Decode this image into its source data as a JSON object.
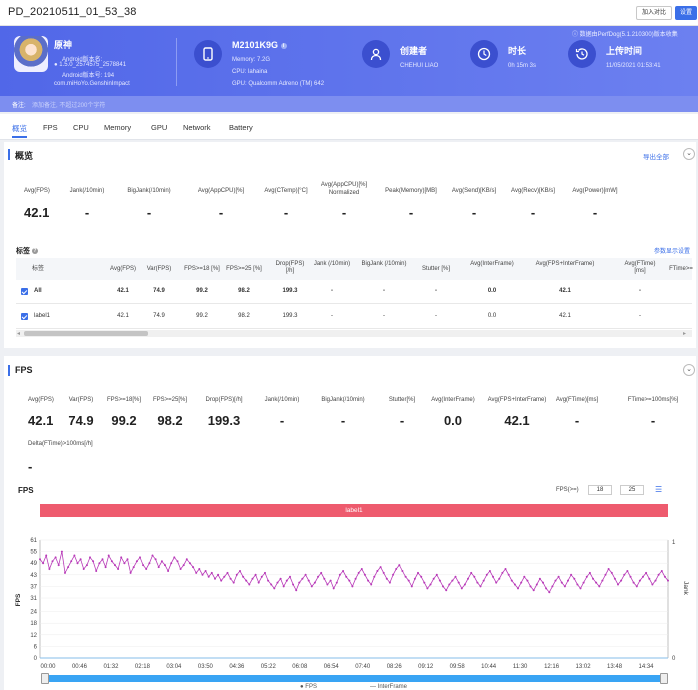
{
  "topbar": {
    "title": "PD_20210511_01_53_38",
    "compare_btn": "加入对比",
    "settings_btn": "设置"
  },
  "header": {
    "app": {
      "name": "原神",
      "android_version_label": "Android版本名:",
      "android_version": "1.5.0_2574575_2578841",
      "android_code": "Android版本号: 194",
      "package": "com.miHoYo.GenshinImpact"
    },
    "device": {
      "model": "M2101K9G",
      "memory": "Memory: 7.2G",
      "cpu": "CPU: lahaina",
      "gpu": "GPU: Qualcomm Adreno (TM) 642"
    },
    "creator": {
      "title": "创建者",
      "value": "CHEHUI LIAO"
    },
    "duration": {
      "title": "时长",
      "value": "0h 15m 3s"
    },
    "upload": {
      "title": "上传时间",
      "value": "11/05/2021 01:53:41"
    },
    "perfdog_version": "数据由PerfDog(5.1.210300)版本收集",
    "note_label": "备注:",
    "note_placeholder": "添加备注, 不超过200个字符"
  },
  "tabs": [
    "概览",
    "FPS",
    "CPU",
    "Memory",
    "GPU",
    "Network",
    "Battery"
  ],
  "overview": {
    "title": "概览",
    "export": "导出全部",
    "stats": [
      {
        "label": "Avg(FPS)",
        "value": "42.1"
      },
      {
        "label": "Jank(/10min)",
        "value": "-"
      },
      {
        "label": "BigJank(/10min)",
        "value": "-"
      },
      {
        "label": "Avg(AppCPU)[%]",
        "value": "-"
      },
      {
        "label": "Avg(CTemp)[°C]",
        "value": "-"
      },
      {
        "label": "Avg(AppCPU)[%] Normalized",
        "value": "-"
      },
      {
        "label": "Peak(Memory)[MB]",
        "value": "-"
      },
      {
        "label": "Avg(Send)[KB/s]",
        "value": "-"
      },
      {
        "label": "Avg(Recv)[KB/s]",
        "value": "-"
      },
      {
        "label": "Avg(Power)[mW]",
        "value": "-"
      }
    ],
    "tags_title": "标签",
    "tags_link": "参数显示设置",
    "table": {
      "headers": [
        "标签",
        "Avg(FPS)",
        "Var(FPS)",
        "FPS>=18 [%]",
        "FPS>=25 [%]",
        "Drop(FPS) [/h]",
        "Jank (/10min)",
        "BigJank (/10min)",
        "Stutter [%]",
        "Avg(InterFrame)",
        "Avg(FPS+InterFrame)",
        "Avg(FTime) [ms]",
        "FTime>="
      ],
      "rows": [
        [
          "All",
          "42.1",
          "74.9",
          "99.2",
          "98.2",
          "199.3",
          "-",
          "-",
          "-",
          "0.0",
          "42.1",
          "-",
          ""
        ],
        [
          "label1",
          "42.1",
          "74.9",
          "99.2",
          "98.2",
          "199.3",
          "-",
          "-",
          "-",
          "0.0",
          "42.1",
          "-",
          ""
        ]
      ]
    }
  },
  "fps_section": {
    "title": "FPS",
    "stats": [
      {
        "label": "Avg(FPS)",
        "value": "42.1"
      },
      {
        "label": "Var(FPS)",
        "value": "74.9"
      },
      {
        "label": "FPS>=18[%]",
        "value": "99.2"
      },
      {
        "label": "FPS>=25[%]",
        "value": "98.2"
      },
      {
        "label": "Drop(FPS)[/h]",
        "value": "199.3"
      },
      {
        "label": "Jank(/10min)",
        "value": "-"
      },
      {
        "label": "BigJank(/10min)",
        "value": "-"
      },
      {
        "label": "Stutter[%]",
        "value": "-"
      },
      {
        "label": "Avg(InterFrame)",
        "value": "0.0"
      },
      {
        "label": "Avg(FPS+InterFrame)",
        "value": "42.1"
      },
      {
        "label": "Avg(FTime)[ms]",
        "value": "-"
      },
      {
        "label": "FTime>=100ms[%]",
        "value": "-"
      },
      {
        "label": "Delta(FTime)>100ms[/h]",
        "value": "-"
      }
    ],
    "chart_title": "FPS",
    "fps_filter_label": "FPS(>=)",
    "fps_filter_1": "18",
    "fps_filter_2": "25",
    "band_label": "label1",
    "legend_fps": "FPS",
    "legend_interframe": "InterFrame"
  },
  "chart_data": {
    "type": "line",
    "ylabel": "FPS",
    "y2label": "Jank",
    "y_ticks": [
      61,
      55,
      49,
      43,
      37,
      31,
      24,
      18,
      12,
      6,
      0
    ],
    "y2_ticks": [
      1,
      0
    ],
    "ylim": [
      0,
      61
    ],
    "x_ticks": [
      "00:00",
      "00:46",
      "01:32",
      "02:18",
      "03:04",
      "03:50",
      "04:36",
      "05:22",
      "06:08",
      "06:54",
      "07:40",
      "08:26",
      "09:12",
      "09:58",
      "10:44",
      "11:30",
      "12:16",
      "13:02",
      "13:48",
      "14:34"
    ],
    "series": [
      {
        "name": "FPS",
        "values": [
          51,
          49,
          53,
          46,
          50,
          52,
          48,
          55,
          44,
          47,
          50,
          53,
          49,
          51,
          46,
          48,
          52,
          50,
          45,
          49,
          51,
          47,
          53,
          50,
          48,
          46,
          52,
          49,
          51,
          44,
          47,
          50,
          52,
          48,
          46,
          49,
          53,
          51,
          47,
          50,
          48,
          45,
          49,
          52,
          50,
          46,
          48,
          51,
          49,
          47,
          44,
          46,
          43,
          45,
          42,
          44,
          41,
          43,
          40,
          42,
          44,
          41,
          39,
          43,
          45,
          42,
          40,
          38,
          41,
          43,
          39,
          42,
          44,
          40,
          38,
          36,
          39,
          41,
          37,
          40,
          42,
          38,
          35,
          39,
          41,
          43,
          40,
          37,
          39,
          42,
          44,
          41,
          38,
          40,
          36,
          39,
          43,
          45,
          42,
          40,
          37,
          41,
          44,
          46,
          43,
          40,
          38,
          42,
          45,
          47,
          44,
          41,
          39,
          43,
          46,
          48,
          45,
          42,
          40,
          37,
          41,
          44,
          42,
          39,
          36,
          38,
          41,
          43,
          40,
          37,
          35,
          38,
          40,
          42,
          39,
          36,
          38,
          41,
          44,
          42,
          39,
          37,
          40,
          43,
          45,
          42,
          39,
          41,
          44,
          46,
          43,
          40,
          38,
          36,
          39,
          42,
          40,
          37,
          35,
          38,
          41,
          39,
          36,
          34,
          37,
          40,
          42,
          39,
          37,
          40,
          43,
          41,
          38,
          36,
          39,
          42,
          44,
          41,
          39,
          37,
          40,
          43,
          46,
          44,
          41,
          38,
          40,
          43,
          45,
          42,
          39,
          37,
          40,
          42,
          44,
          41,
          38,
          40,
          43,
          45,
          42,
          40
        ]
      }
    ]
  }
}
